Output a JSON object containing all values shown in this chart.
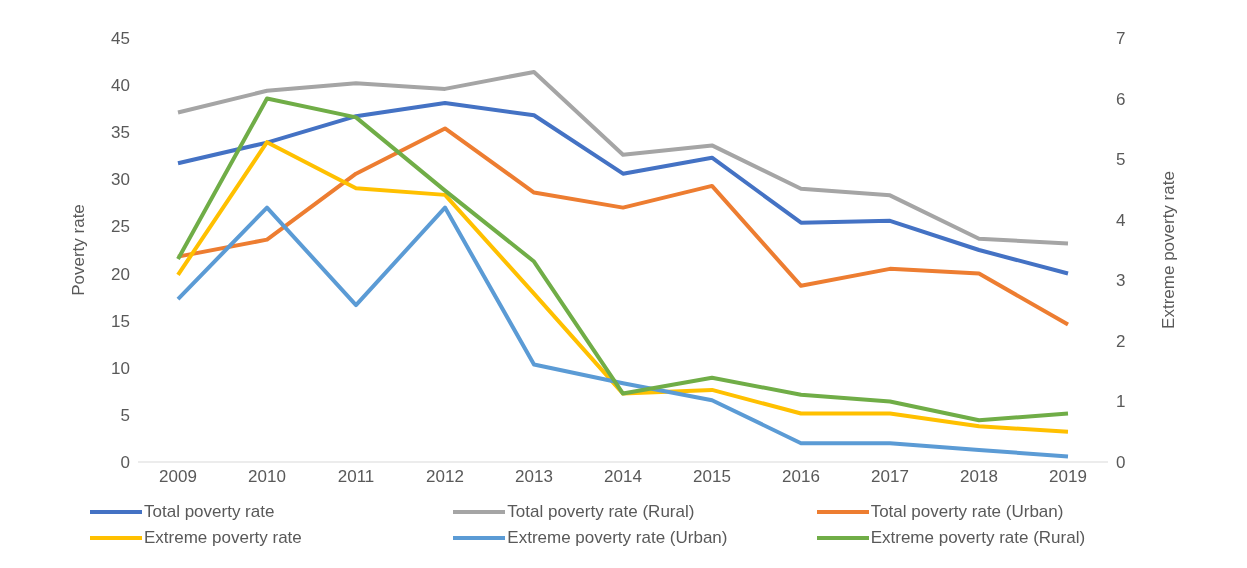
{
  "chart_data": {
    "type": "line",
    "categories": [
      "2009",
      "2010",
      "2011",
      "2012",
      "2013",
      "2014",
      "2015",
      "2016",
      "2017",
      "2018",
      "2019"
    ],
    "ylabel": "Poverty rate",
    "y2label": "Extreme poverty rate",
    "ylim": [
      0,
      45
    ],
    "yticks": [
      0,
      5,
      10,
      15,
      20,
      25,
      30,
      35,
      40,
      45
    ],
    "y2lim": [
      0,
      7
    ],
    "y2ticks": [
      0,
      1,
      2,
      3,
      4,
      5,
      6,
      7
    ],
    "grid": false,
    "legend": "bottom",
    "marker": "none",
    "line_style": "solid",
    "series": [
      {
        "name": "Total poverty rate",
        "color": "#4472c4",
        "values": [
          31.7,
          33.9,
          36.7,
          38.1,
          36.8,
          30.6,
          32.3,
          25.4,
          25.6,
          22.5,
          20.0
        ]
      },
      {
        "name": "Total poverty rate (Rural)",
        "color": "#a5a5a5",
        "values": [
          37.1,
          39.4,
          40.2,
          39.6,
          41.4,
          32.6,
          33.6,
          29.0,
          28.3,
          23.7,
          23.2
        ]
      },
      {
        "name": "Total poverty rate (Urban)",
        "color": "#ed7d31",
        "values": [
          21.8,
          23.6,
          30.6,
          35.4,
          28.6,
          27.0,
          29.3,
          18.7,
          20.5,
          20.0,
          14.6
        ]
      },
      {
        "name": "Extreme poverty rate",
        "color": "#ffc000",
        "axis": "y2",
        "values": [
          3.09,
          5.28,
          4.52,
          4.41,
          2.78,
          1.13,
          1.19,
          0.8,
          0.8,
          0.59,
          0.5
        ]
      },
      {
        "name": "Extreme poverty rate (Urban)",
        "color": "#5b9bd5",
        "axis": "y2",
        "values": [
          2.69,
          4.2,
          2.59,
          4.2,
          1.61,
          1.3,
          1.02,
          0.31,
          0.31,
          0.2,
          0.09
        ]
      },
      {
        "name": "Extreme poverty rate (Rural)",
        "color": "#70ad47",
        "axis": "y2",
        "values": [
          3.35,
          6.0,
          5.69,
          4.48,
          3.31,
          1.13,
          1.39,
          1.11,
          1.0,
          0.69,
          0.8
        ]
      }
    ]
  }
}
